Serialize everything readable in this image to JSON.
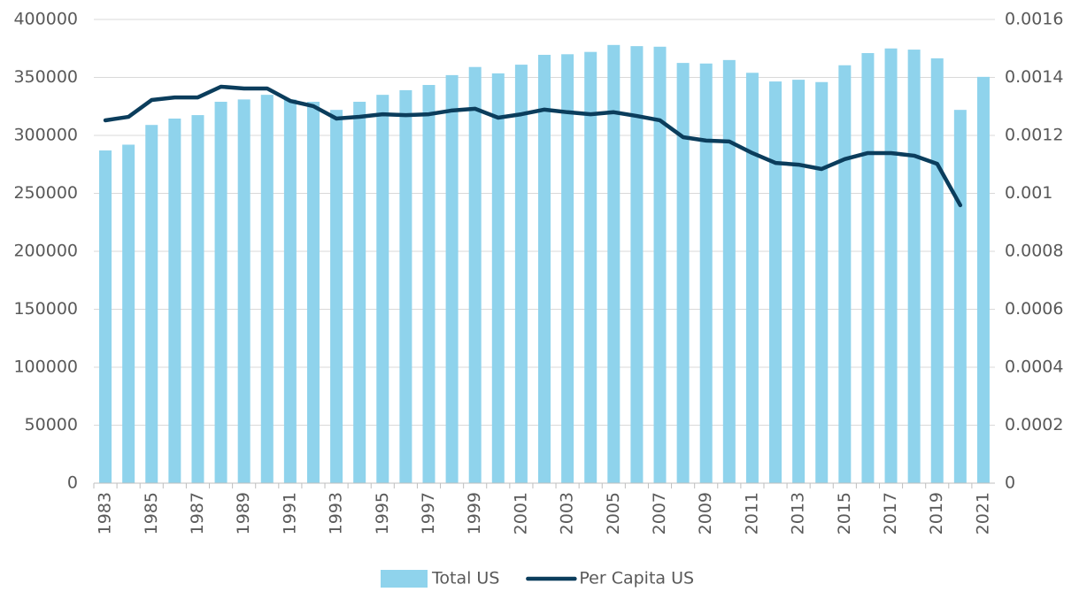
{
  "chart_data": {
    "type": "bar",
    "categories": [
      "1983",
      null,
      "1985",
      null,
      "1987",
      null,
      "1989",
      null,
      "1991",
      null,
      "1993",
      null,
      "1995",
      null,
      "1997",
      null,
      "1999",
      null,
      "2001",
      null,
      "2003",
      null,
      "2005",
      null,
      "2007",
      null,
      "2009",
      null,
      "2011",
      null,
      "2013",
      null,
      "2015",
      null,
      "2017",
      null,
      "2019",
      null,
      "2021"
    ],
    "series": [
      {
        "name": "Total US",
        "type": "bar",
        "color": "#8fd3ec",
        "values": [
          287000,
          292000,
          309000,
          314500,
          317500,
          329000,
          331000,
          335000,
          331000,
          329000,
          322000,
          329000,
          335000,
          339000,
          343500,
          352000,
          359000,
          353500,
          361000,
          369500,
          370000,
          372000,
          378000,
          377000,
          376500,
          362500,
          362000,
          365000,
          354000,
          346500,
          348000,
          346000,
          360500,
          371000,
          375000,
          374000,
          366500,
          322000,
          350500
        ]
      },
      {
        "name": "Per Capita US",
        "type": "line",
        "axis": "y2",
        "color": "#0b3d5c",
        "values": [
          0.001252,
          0.001264,
          0.001322,
          0.001331,
          0.001331,
          0.001368,
          0.001362,
          0.001362,
          0.001319,
          0.001301,
          0.001258,
          0.001264,
          0.001273,
          0.00127,
          0.001273,
          0.001286,
          0.001292,
          0.001261,
          0.001273,
          0.001289,
          0.00128,
          0.001273,
          0.00128,
          0.001267,
          0.001252,
          0.001194,
          0.001182,
          0.001179,
          0.001139,
          0.001105,
          0.001099,
          0.001084,
          0.001118,
          0.001139,
          0.001139,
          0.00113,
          0.001102,
          0.000959,
          null
        ]
      }
    ],
    "ylim": [
      0,
      400000
    ],
    "yticks": [
      0,
      50000,
      100000,
      150000,
      200000,
      250000,
      300000,
      350000,
      400000
    ],
    "y2lim": [
      0,
      0.0016
    ],
    "y2ticks": [
      0,
      0.0002,
      0.0004,
      0.0006,
      0.0008,
      0.001,
      0.0012,
      0.0014,
      0.0016
    ],
    "grid": true,
    "legend": "bottom"
  }
}
